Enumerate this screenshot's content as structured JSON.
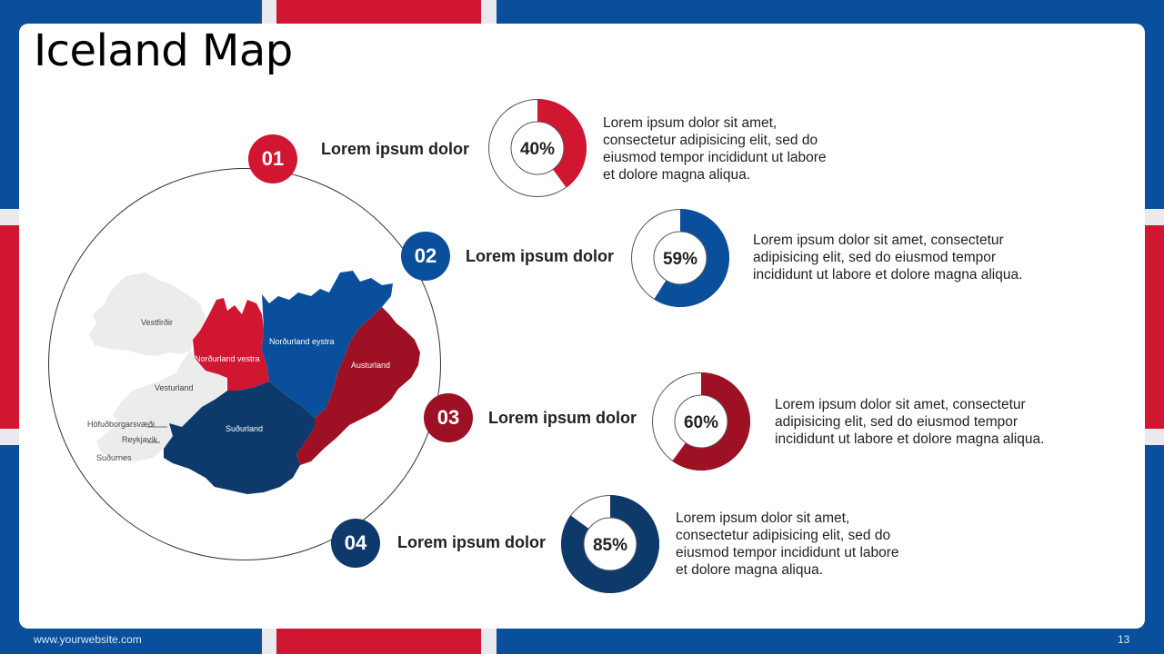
{
  "title": "Iceland Map",
  "colors": {
    "red": "#d11631",
    "dark_red": "#9e1024",
    "blue": "#0a4f9c",
    "navy": "#0e3a6b",
    "grey": "#ececec"
  },
  "map": {
    "regions": [
      "Vestfirðir",
      "Norðurland vestra",
      "Norðurland eystra",
      "Austurland",
      "Vesturland",
      "Höfuðborgarsvæði",
      "Reykjavík",
      "Suðurland",
      "Suðurnes"
    ]
  },
  "items": [
    {
      "number": "01",
      "heading": "Lorem ipsum dolor",
      "percent": 40,
      "percent_label": "40%",
      "lines": [
        "Lorem ipsum dolor sit amet,",
        "consectetur adipisicing elit, sed do",
        "eiusmod tempor incididunt ut labore",
        "et dolore magna aliqua."
      ]
    },
    {
      "number": "02",
      "heading": "Lorem ipsum dolor",
      "percent": 59,
      "percent_label": "59%",
      "lines": [
        "Lorem ipsum dolor sit amet, consectetur",
        "adipisicing elit, sed do eiusmod tempor",
        "incididunt ut labore et dolore magna aliqua."
      ]
    },
    {
      "number": "03",
      "heading": "Lorem ipsum dolor",
      "percent": 60,
      "percent_label": "60%",
      "lines": [
        "Lorem ipsum dolor sit amet, consectetur",
        "adipisicing elit, sed do eiusmod tempor",
        "incididunt ut labore et dolore magna aliqua."
      ]
    },
    {
      "number": "04",
      "heading": "Lorem ipsum dolor",
      "percent": 85,
      "percent_label": "85%",
      "lines": [
        "Lorem ipsum dolor sit amet,",
        "consectetur adipisicing elit, sed do",
        "eiusmod tempor incididunt ut labore",
        "et dolore magna aliqua."
      ]
    }
  ],
  "footer": {
    "url": "www.yourwebsite.com",
    "page": "13"
  }
}
